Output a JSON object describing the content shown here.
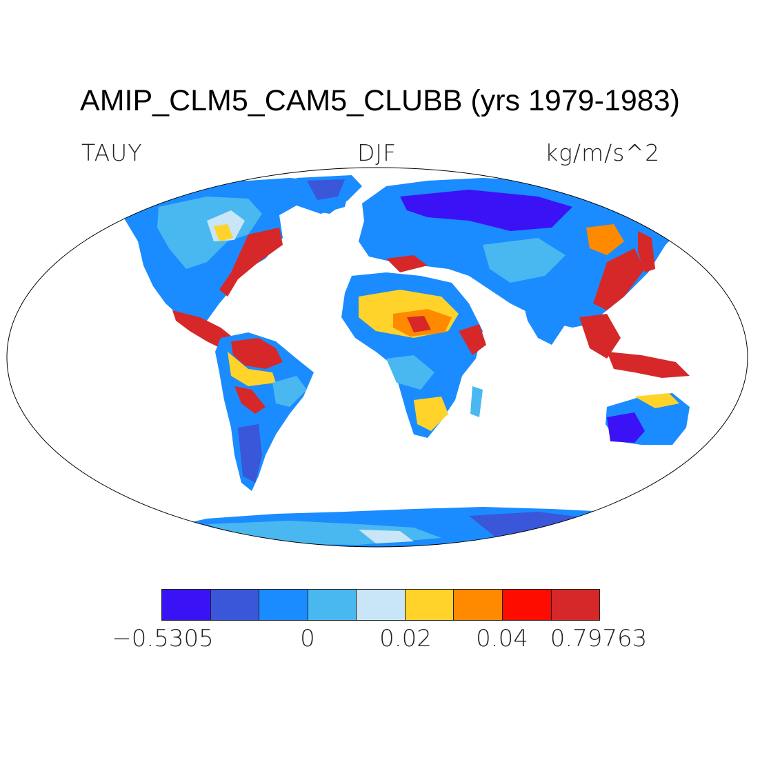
{
  "title": "AMIP_CLM5_CAM5_CLUBB (yrs 1979-1983)",
  "variable": "TAUY",
  "season": "DJF",
  "units": "kg/m/s^2",
  "colorbar": {
    "colors": [
      "#3b12f5",
      "#3a56d9",
      "#1a8cff",
      "#4ab8f0",
      "#c8e6f7",
      "#ffd32a",
      "#ff8a00",
      "#ff0c00",
      "#d62828"
    ],
    "labels": [
      "−0.5305",
      "0",
      "0.02",
      "0.04",
      "0.79763"
    ]
  }
}
